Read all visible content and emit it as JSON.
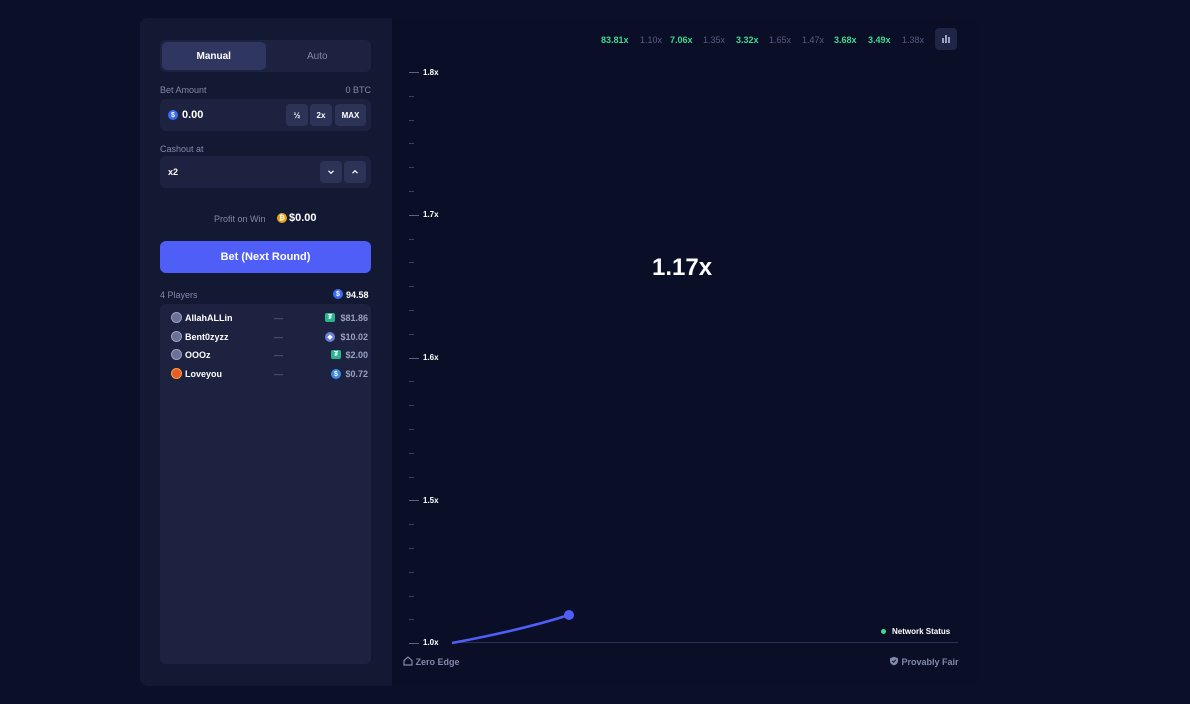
{
  "tabs": {
    "manual": "Manual",
    "auto": "Auto"
  },
  "bet_amount": {
    "label": "Bet Amount",
    "balance": "0 BTC",
    "value": "0.00",
    "half": "½",
    "double": "2x",
    "max": "MAX"
  },
  "cashout": {
    "label": "Cashout at",
    "value": "x2"
  },
  "profit": {
    "label": "Profit on Win",
    "value": "$0.00"
  },
  "bet_button": "Bet (Next Round)",
  "players": {
    "count_label": "4 Players",
    "total": "94.58",
    "rows": [
      {
        "name": "AllahALLin",
        "status": "—",
        "amount": "$81.86",
        "coin": "tether"
      },
      {
        "name": "Bent0zyzz",
        "status": "—",
        "amount": "$10.02",
        "coin": "eth"
      },
      {
        "name": "OOOz",
        "status": "—",
        "amount": "$2.00",
        "coin": "tether"
      },
      {
        "name": "Loveyou",
        "status": "—",
        "amount": "$0.72",
        "coin": "circle"
      }
    ]
  },
  "history": [
    {
      "value": "83.81x",
      "hit": true
    },
    {
      "value": "1.10x",
      "hit": false
    },
    {
      "value": "7.06x",
      "hit": true
    },
    {
      "value": "1.35x",
      "hit": false
    },
    {
      "value": "3.32x",
      "hit": true
    },
    {
      "value": "1.65x",
      "hit": false
    },
    {
      "value": "1.47x",
      "hit": false
    },
    {
      "value": "3.68x",
      "hit": true
    },
    {
      "value": "3.49x",
      "hit": true
    },
    {
      "value": "1.38x",
      "hit": false
    }
  ],
  "graph": {
    "multiplier": "1.17x",
    "y_labels": [
      "1.8x",
      "1.7x",
      "1.6x",
      "1.5x",
      "1.0x"
    ],
    "y_range": [
      1.0,
      1.8
    ]
  },
  "footer": {
    "zero_edge": "Zero Edge",
    "provably_fair": "Provably Fair",
    "network_status": "Network Status"
  },
  "colors": {
    "accent": "#4f5ef7",
    "win": "#3fd98f",
    "panel": "#131933",
    "background": "#0b1028"
  }
}
